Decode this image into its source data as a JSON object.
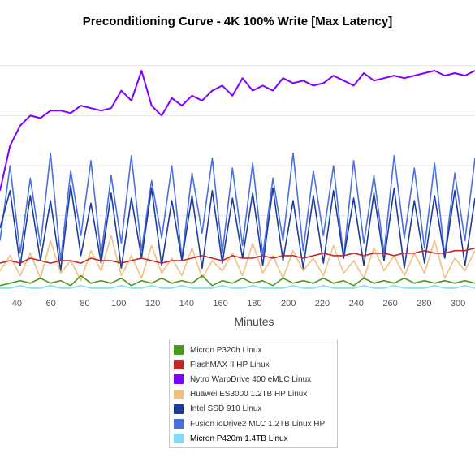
{
  "chart_data": {
    "type": "line",
    "title": "Preconditioning Curve - 4K 100% Write [Max Latency]",
    "xlabel": "Minutes",
    "ylabel": "",
    "x_range": [
      30,
      310
    ],
    "x_ticks": [
      40,
      60,
      80,
      100,
      120,
      140,
      160,
      180,
      200,
      220,
      240,
      260,
      280,
      300
    ],
    "y_range": [
      0,
      100
    ],
    "y_grid_levels": [
      10,
      30,
      50,
      70,
      90
    ],
    "grid": true,
    "legend_position": "bottom",
    "series": [
      {
        "name": "Micron P320h Linux",
        "color": "#4a9a1c",
        "values": [
          2,
          3,
          4,
          3,
          5,
          3,
          4,
          2,
          6,
          3,
          4,
          3,
          5,
          2,
          4,
          3,
          5,
          3,
          4,
          3,
          6,
          2,
          4,
          3,
          5,
          3,
          4,
          2,
          5,
          3,
          4,
          3,
          5,
          3,
          4,
          2,
          5,
          3,
          4,
          3,
          5,
          3,
          4,
          3,
          4,
          3,
          4,
          3
        ]
      },
      {
        "name": "FlashMAX II HP Linux",
        "color": "#c0282a",
        "values": [
          11,
          12,
          11,
          13,
          12,
          11,
          12,
          12,
          11,
          13,
          12,
          12,
          11,
          12,
          13,
          12,
          11,
          12,
          12,
          13,
          14,
          13,
          12,
          14,
          13,
          13,
          14,
          13,
          14,
          14,
          13,
          14,
          15,
          14,
          14,
          15,
          14,
          15,
          15,
          14,
          15,
          15,
          16,
          15,
          15,
          16,
          16,
          17
        ]
      },
      {
        "name": "Nytro WarpDrive 400 eMLC Linux",
        "color": "#8000ff",
        "values": [
          40,
          58,
          66,
          70,
          69,
          72,
          72,
          71,
          74,
          73,
          72,
          73,
          80,
          76,
          88,
          74,
          70,
          77,
          74,
          78,
          76,
          80,
          82,
          78,
          85,
          80,
          82,
          80,
          85,
          83,
          84,
          82,
          83,
          86,
          84,
          82,
          87,
          84,
          85,
          86,
          85,
          86,
          87,
          88,
          86,
          87,
          86,
          88
        ]
      },
      {
        "name": "Huawei ES3000 1.2TB HP Linux",
        "color": "#f0c080",
        "values": [
          8,
          14,
          6,
          15,
          5,
          20,
          7,
          12,
          4,
          16,
          8,
          22,
          6,
          14,
          5,
          18,
          7,
          13,
          6,
          17,
          5,
          12,
          8,
          15,
          6,
          19,
          7,
          14,
          5,
          16,
          8,
          13,
          6,
          18,
          7,
          12,
          5,
          17,
          8,
          14,
          6,
          15,
          7,
          20,
          5,
          13,
          8,
          16
        ]
      },
      {
        "name": "Intel SSD 910 Linux",
        "color": "#1e3c9c",
        "values": [
          25,
          40,
          10,
          38,
          12,
          36,
          8,
          42,
          14,
          35,
          11,
          39,
          9,
          37,
          13,
          41,
          10,
          36,
          12,
          38,
          9,
          40,
          11,
          37,
          13,
          39,
          10,
          41,
          12,
          36,
          9,
          38,
          11,
          40,
          13,
          37,
          10,
          39,
          12,
          41,
          9,
          36,
          11,
          38,
          13,
          40,
          10,
          37
        ]
      },
      {
        "name": "Fusion ioDrive2 MLC 1.2TB Linux HP",
        "color": "#4a70e0",
        "values": [
          20,
          50,
          15,
          45,
          18,
          55,
          12,
          48,
          22,
          52,
          14,
          46,
          19,
          54,
          16,
          44,
          21,
          50,
          13,
          47,
          23,
          53,
          15,
          49,
          18,
          51,
          14,
          45,
          20,
          55,
          16,
          48,
          22,
          50,
          13,
          52,
          19,
          46,
          15,
          54,
          21,
          49,
          17,
          51,
          14,
          47,
          20,
          53
        ]
      },
      {
        "name": "Micron P420m 1.4TB Linux",
        "color": "#80dcf4",
        "values": [
          1,
          1,
          2,
          1,
          1,
          2,
          1,
          1,
          2,
          1,
          1,
          1,
          2,
          1,
          1,
          2,
          1,
          1,
          2,
          1,
          1,
          1,
          2,
          1,
          1,
          2,
          1,
          1,
          1,
          2,
          1,
          1,
          2,
          1,
          1,
          1,
          2,
          1,
          1,
          2,
          1,
          1,
          1,
          2,
          1,
          1,
          2,
          1
        ]
      }
    ]
  }
}
